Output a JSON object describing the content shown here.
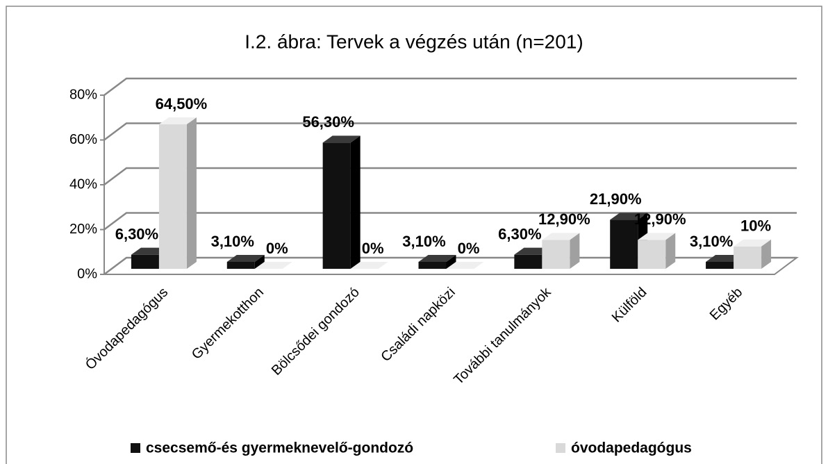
{
  "chart_data": {
    "type": "bar3d",
    "title": "I.2. ábra: Tervek a végzés után (n=201)",
    "categories": [
      "Óvodapedagógus",
      "Gyermekotthon",
      "Bölcsődei gondozó",
      "Családi napközi",
      "További tanulmányok",
      "Külföld",
      "Egyéb"
    ],
    "series": [
      {
        "name": "csecsemő-és gyermeknevelő-gondozó",
        "color": "#111111",
        "values": [
          6.3,
          3.1,
          56.3,
          3.1,
          6.3,
          21.9,
          3.1
        ],
        "value_labels": [
          "6,30%",
          "3,10%",
          "56,30%",
          "3,10%",
          "6,30%",
          "21,90%",
          "3,10%"
        ]
      },
      {
        "name": "óvodapedagógus",
        "color": "#d9d9d9",
        "values": [
          64.5,
          0,
          0,
          0,
          12.9,
          12.9,
          10
        ],
        "value_labels": [
          "64,50%",
          "0%",
          "0%",
          "0%",
          "12,90%",
          "12,90%",
          "10%"
        ]
      }
    ],
    "ylim": [
      0,
      80
    ],
    "yticks": [
      {
        "value": 0,
        "label": "0%"
      },
      {
        "value": 20,
        "label": "20%"
      },
      {
        "value": 40,
        "label": "40%"
      },
      {
        "value": 60,
        "label": "60%"
      },
      {
        "value": 80,
        "label": "80%"
      }
    ],
    "grid": true
  }
}
